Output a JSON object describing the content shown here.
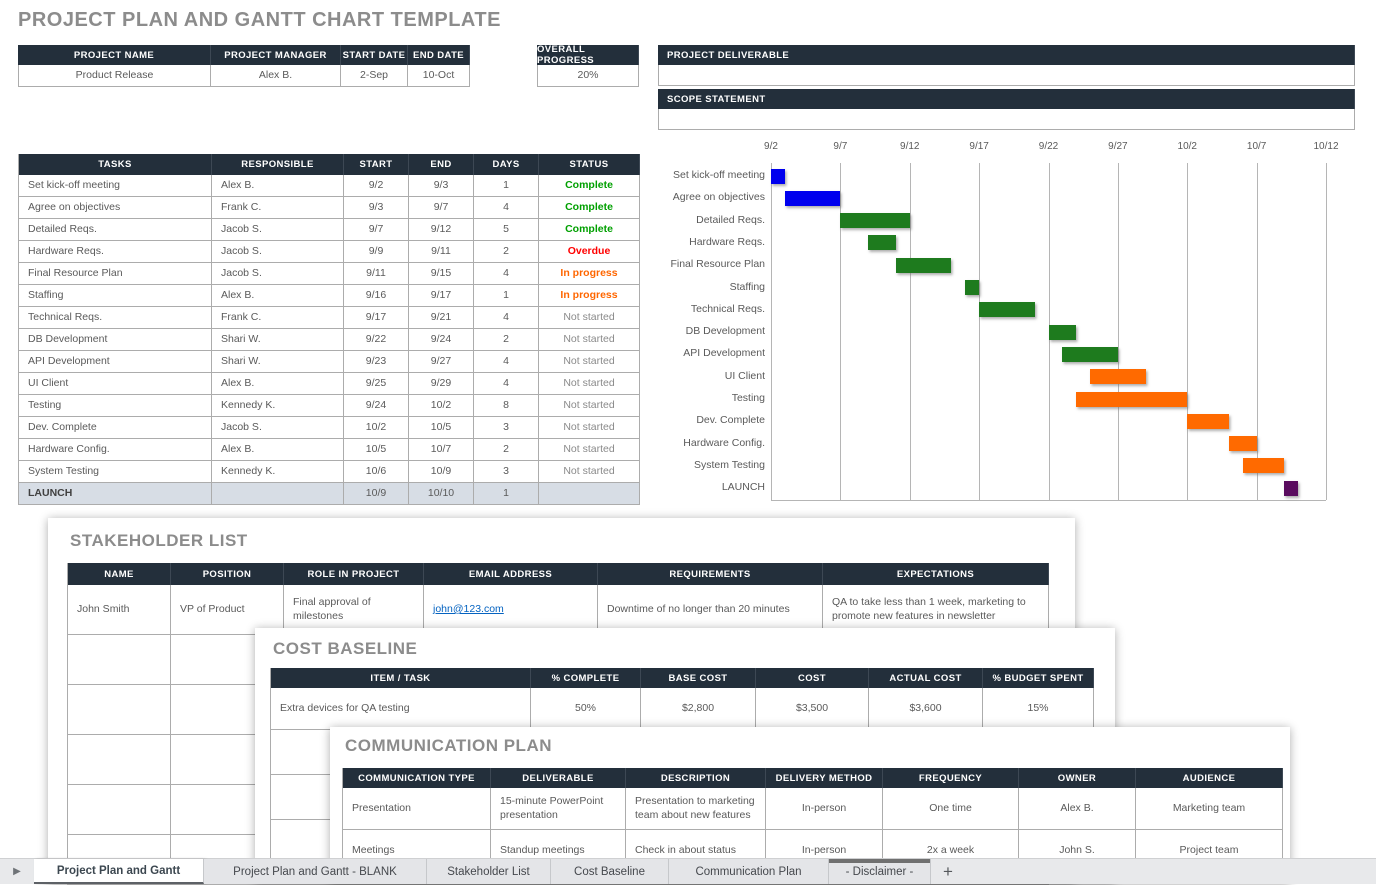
{
  "title": "PROJECT PLAN AND GANTT CHART TEMPLATE",
  "project_info": {
    "headers": [
      "PROJECT NAME",
      "PROJECT MANAGER",
      "START DATE",
      "END DATE"
    ],
    "values": [
      "Product Release",
      "Alex B.",
      "2-Sep",
      "10-Oct"
    ]
  },
  "overall_progress": {
    "label": "OVERALL PROGRESS",
    "value": "20%"
  },
  "deliverable": {
    "label": "PROJECT DELIVERABLE",
    "value": ""
  },
  "scope": {
    "label": "SCOPE STATEMENT",
    "value": ""
  },
  "tasks": {
    "headers": [
      "TASKS",
      "RESPONSIBLE",
      "START",
      "END",
      "DAYS",
      "STATUS"
    ],
    "rows": [
      [
        "Set kick-off meeting",
        "Alex B.",
        "9/2",
        "9/3",
        "1",
        "Complete"
      ],
      [
        "Agree on objectives",
        "Frank C.",
        "9/3",
        "9/7",
        "4",
        "Complete"
      ],
      [
        "Detailed Reqs.",
        "Jacob S.",
        "9/7",
        "9/12",
        "5",
        "Complete"
      ],
      [
        "Hardware Reqs.",
        "Jacob S.",
        "9/9",
        "9/11",
        "2",
        "Overdue"
      ],
      [
        "Final Resource Plan",
        "Jacob S.",
        "9/11",
        "9/15",
        "4",
        "In progress"
      ],
      [
        "Staffing",
        "Alex B.",
        "9/16",
        "9/17",
        "1",
        "In progress"
      ],
      [
        "Technical Reqs.",
        "Frank C.",
        "9/17",
        "9/21",
        "4",
        "Not started"
      ],
      [
        "DB Development",
        "Shari W.",
        "9/22",
        "9/24",
        "2",
        "Not started"
      ],
      [
        "API Development",
        "Shari W.",
        "9/23",
        "9/27",
        "4",
        "Not started"
      ],
      [
        "UI Client",
        "Alex B.",
        "9/25",
        "9/29",
        "4",
        "Not started"
      ],
      [
        "Testing",
        "Kennedy K.",
        "9/24",
        "10/2",
        "8",
        "Not started"
      ],
      [
        "Dev. Complete",
        "Jacob S.",
        "10/2",
        "10/5",
        "3",
        "Not started"
      ],
      [
        "Hardware Config.",
        "Alex B.",
        "10/5",
        "10/7",
        "2",
        "Not started"
      ],
      [
        "System Testing",
        "Kennedy K.",
        "10/6",
        "10/9",
        "3",
        "Not started"
      ]
    ],
    "launch_row": [
      "LAUNCH",
      "",
      "10/9",
      "10/10",
      "1",
      ""
    ]
  },
  "chart_data": {
    "type": "gantt",
    "title": "",
    "x_ticks": [
      "9/2",
      "9/7",
      "9/12",
      "9/17",
      "9/22",
      "9/27",
      "10/2",
      "10/7",
      "10/12"
    ],
    "axis_start": "9/2",
    "axis_end": "10/12",
    "days_total": 40,
    "tick_interval_days": 5,
    "grid": true,
    "bars": [
      {
        "label": "Set kick-off meeting",
        "start": "9/2",
        "end": "9/3",
        "start_day": 0,
        "duration_days": 1,
        "color": "#0000ee"
      },
      {
        "label": "Agree on objectives",
        "start": "9/3",
        "end": "9/7",
        "start_day": 1,
        "duration_days": 4,
        "color": "#0000ee"
      },
      {
        "label": "Detailed Reqs.",
        "start": "9/7",
        "end": "9/12",
        "start_day": 5,
        "duration_days": 5,
        "color": "#1e7b1e"
      },
      {
        "label": "Hardware Reqs.",
        "start": "9/9",
        "end": "9/11",
        "start_day": 7,
        "duration_days": 2,
        "color": "#1e7b1e"
      },
      {
        "label": "Final Resource Plan",
        "start": "9/11",
        "end": "9/15",
        "start_day": 9,
        "duration_days": 4,
        "color": "#1e7b1e"
      },
      {
        "label": "Staffing",
        "start": "9/16",
        "end": "9/17",
        "start_day": 14,
        "duration_days": 1,
        "color": "#1e7b1e"
      },
      {
        "label": "Technical Reqs.",
        "start": "9/17",
        "end": "9/21",
        "start_day": 15,
        "duration_days": 4,
        "color": "#1e7b1e"
      },
      {
        "label": "DB Development",
        "start": "9/22",
        "end": "9/24",
        "start_day": 20,
        "duration_days": 2,
        "color": "#1e7b1e"
      },
      {
        "label": "API Development",
        "start": "9/23",
        "end": "9/27",
        "start_day": 21,
        "duration_days": 4,
        "color": "#1e7b1e"
      },
      {
        "label": "UI Client",
        "start": "9/25",
        "end": "9/29",
        "start_day": 23,
        "duration_days": 4,
        "color": "#ff6a00"
      },
      {
        "label": "Testing",
        "start": "9/24",
        "end": "10/2",
        "start_day": 22,
        "duration_days": 8,
        "color": "#ff6a00"
      },
      {
        "label": "Dev. Complete",
        "start": "10/2",
        "end": "10/5",
        "start_day": 30,
        "duration_days": 3,
        "color": "#ff6a00"
      },
      {
        "label": "Hardware Config.",
        "start": "10/5",
        "end": "10/7",
        "start_day": 33,
        "duration_days": 2,
        "color": "#ff6a00"
      },
      {
        "label": "System Testing",
        "start": "10/6",
        "end": "10/9",
        "start_day": 34,
        "duration_days": 3,
        "color": "#ff6a00"
      },
      {
        "label": "LAUNCH",
        "start": "10/9",
        "end": "10/10",
        "start_day": 37,
        "duration_days": 1,
        "color": "#5a0c5f"
      }
    ]
  },
  "stakeholder": {
    "title": "STAKEHOLDER LIST",
    "headers": [
      "NAME",
      "POSITION",
      "ROLE IN PROJECT",
      "EMAIL ADDRESS",
      "REQUIREMENTS",
      "EXPECTATIONS"
    ],
    "rows": [
      [
        "John Smith",
        "VP of Product",
        "Final approval of milestones",
        "john@123.com",
        "Downtime of no longer than 20 minutes",
        "QA to take less than 1 week, marketing to promote new features in newsletter"
      ]
    ],
    "email_col": 3,
    "empty_rows": 5
  },
  "cost_baseline": {
    "title": "COST BASELINE",
    "headers": [
      "ITEM / TASK",
      "% COMPLETE",
      "BASE COST",
      "COST",
      "ACTUAL COST",
      "% BUDGET SPENT"
    ],
    "rows": [
      [
        "Extra devices for QA testing",
        "50%",
        "$2,800",
        "$3,500",
        "$3,600",
        "15%"
      ]
    ],
    "empty_rows": 3
  },
  "communication_plan": {
    "title": "COMMUNICATION PLAN",
    "headers": [
      "COMMUNICATION TYPE",
      "DELIVERABLE",
      "DESCRIPTION",
      "DELIVERY METHOD",
      "FREQUENCY",
      "OWNER",
      "AUDIENCE"
    ],
    "rows": [
      [
        "Presentation",
        "15-minute PowerPoint presentation",
        "Presentation to marketing team about new features",
        "In-person",
        "One time",
        "Alex B.",
        "Marketing team"
      ],
      [
        "Meetings",
        "Standup meetings",
        "Check in about status",
        "In-person",
        "2x a week",
        "John S.",
        "Project team"
      ]
    ]
  },
  "sheet_tabs": [
    {
      "label": "Project Plan and Gantt",
      "active": true
    },
    {
      "label": "Project Plan and Gantt - BLANK",
      "active": false
    },
    {
      "label": "Stakeholder List",
      "active": false
    },
    {
      "label": "Cost Baseline",
      "active": false
    },
    {
      "label": "Communication Plan",
      "active": false
    },
    {
      "label": "- Disclaimer -",
      "active": false,
      "accent_top": true
    },
    {
      "label": "+",
      "active": false,
      "add": true
    }
  ],
  "colors": {
    "header_navy": "#232f3b",
    "status_complete": "#00a000",
    "status_overdue": "#ff0000",
    "status_in_progress": "#ff6600",
    "status_not_started": "#8a8a8a",
    "bar_blue": "#0000ee",
    "bar_green": "#1e7b1e",
    "bar_orange": "#ff6a00",
    "bar_purple": "#5a0c5f",
    "launch_row_bg": "#d7dde5",
    "link_blue": "#0563c1",
    "title_gray": "#8c8c8c"
  }
}
